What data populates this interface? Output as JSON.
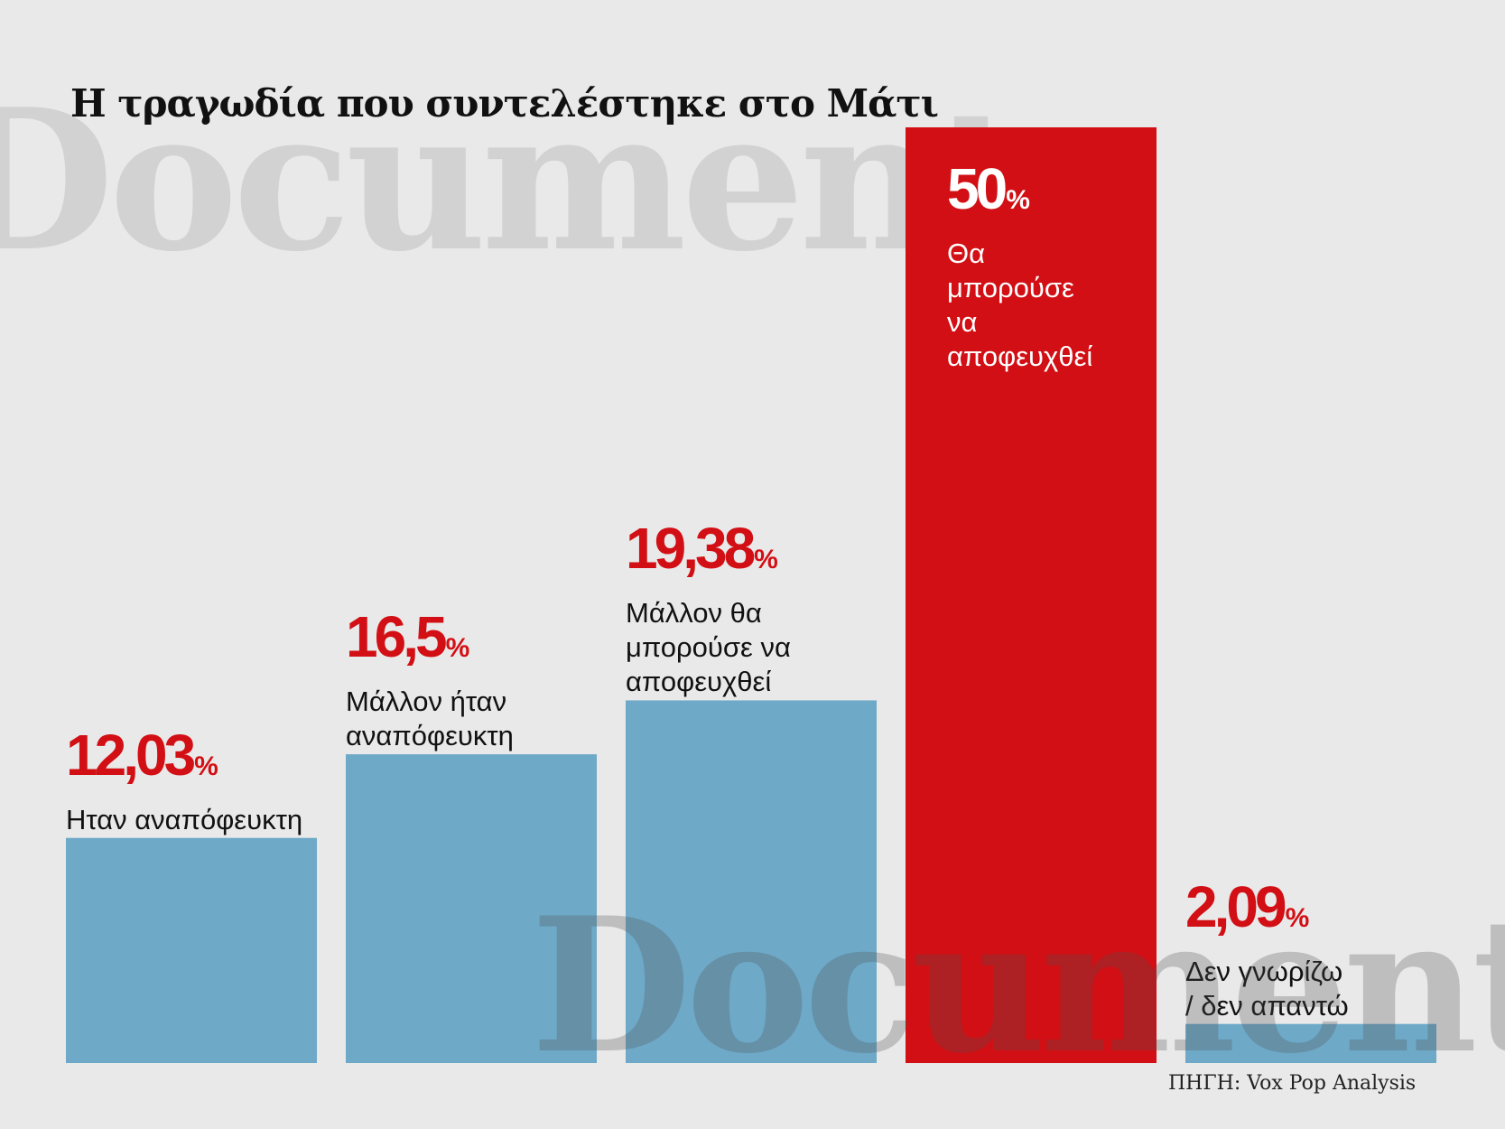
{
  "watermark": "Documento",
  "chart_data": {
    "type": "bar",
    "title": "Η τραγωδία που συντελέστηκε στο Μάτι",
    "categories": [
      "Ηταν αναπόφευκτη",
      "Μάλλον ήταν αναπόφευκτη",
      "Μάλλον θα μπορούσε να αποφευχθεί",
      "Θα μπορούσε να αποφευχθεί",
      "Δεν γνωρίζω / δεν απαντώ"
    ],
    "values": [
      12.03,
      16.5,
      19.38,
      50,
      2.09
    ],
    "value_labels": [
      "12,03",
      "16,5",
      "19,38",
      "50",
      "2,09"
    ],
    "unit": "%",
    "ylim": [
      0,
      50
    ],
    "grid": false,
    "colors": {
      "default_bar": "#6ea9c8",
      "highlight_bar": "#d20f14",
      "value_text": "#d20f14",
      "highlight_text": "#ffffff",
      "category_text": "#111111"
    },
    "highlight_index": 3
  },
  "source": "ΠΗΓΗ: Vox Pop Analysis"
}
